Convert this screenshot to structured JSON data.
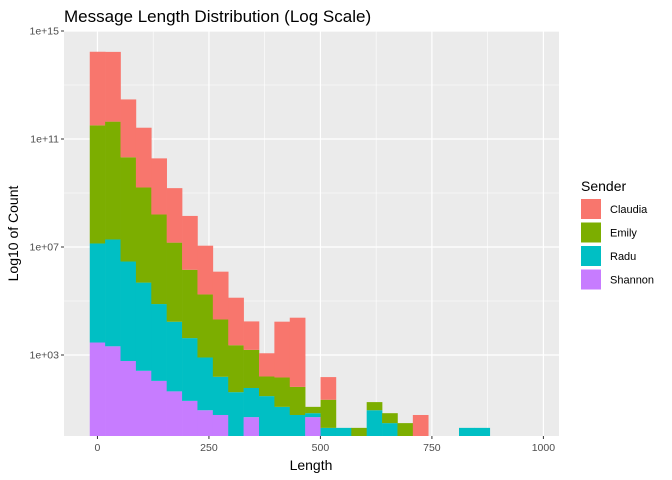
{
  "chart_data": {
    "type": "bar",
    "subtype": "stacked-histogram",
    "title": "Message Length Distribution (Log Scale)",
    "xlabel": "Length",
    "ylabel": "Log10 of Count",
    "y_scale": "log10",
    "xlim": [
      -75,
      1035
    ],
    "ylim": [
      1,
      1000000000000000.0
    ],
    "x_ticks": [
      0,
      250,
      500,
      750,
      1000
    ],
    "x_tick_labels": [
      "0",
      "250",
      "500",
      "750",
      "1000"
    ],
    "y_ticks": [
      1000.0,
      10000000.0,
      100000000000.0,
      1000000000000000.0
    ],
    "y_tick_labels": [
      "1e+03",
      "1e+07",
      "1e+11",
      "1e+15"
    ],
    "grid": true,
    "legend": {
      "title": "Sender",
      "position": "right"
    },
    "bin_width": 34.5,
    "bins": [
      0,
      34.5,
      69,
      103.5,
      138,
      172.5,
      207,
      241.5,
      276,
      310.5,
      345,
      379.5,
      414,
      448.5,
      483,
      517.5,
      552,
      586.5,
      621,
      655.5,
      690,
      724.5,
      759,
      793.5,
      828,
      862.5,
      897,
      931.5,
      966,
      1000.5
    ],
    "series": [
      {
        "name": "Shannon",
        "color": "#C77CFF",
        "values": [
          2900,
          2100,
          600,
          260,
          110,
          45,
          20,
          9,
          6,
          1,
          5,
          0,
          0,
          1,
          5,
          0,
          0,
          0,
          0,
          0,
          0,
          0,
          0,
          0,
          0,
          0,
          0,
          0,
          0,
          0
        ]
      },
      {
        "name": "Radu",
        "color": "#00BFC4",
        "values": [
          13500000.0,
          19000000.0,
          2900000.0,
          480000.0,
          77000.0,
          17000.0,
          4200,
          800,
          150,
          41,
          55,
          30,
          12,
          5,
          2,
          2,
          2,
          0,
          9,
          3,
          1,
          1,
          0,
          0,
          2,
          2,
          0,
          1,
          1,
          0
        ]
      },
      {
        "name": "Emily",
        "color": "#7CAE00",
        "values": [
          320000000000.0,
          440000000000.0,
          21000000000.0,
          1600000000.0,
          160000000.0,
          14500000.0,
          1430000.0,
          174000.0,
          20500.0,
          2259,
          1490,
          130,
          135,
          60,
          5,
          20,
          0,
          2,
          9,
          4,
          2,
          0,
          0,
          0,
          0,
          0,
          0,
          0,
          0,
          1
        ]
      },
      {
        "name": "Claudia",
        "color": "#F8766D",
        "values": [
          170000000000000.0,
          168000000000000.0,
          2900000000000.0,
          260000000000.0,
          19000000000.0,
          1500000000.0,
          140000000.0,
          11000000.0,
          1200000.0,
          130000.0,
          16000.0,
          1000,
          17000.0,
          24000.0,
          0,
          130,
          0,
          0,
          0,
          0,
          0,
          5,
          0,
          0,
          0,
          0,
          0,
          0,
          0,
          0
        ]
      }
    ]
  }
}
